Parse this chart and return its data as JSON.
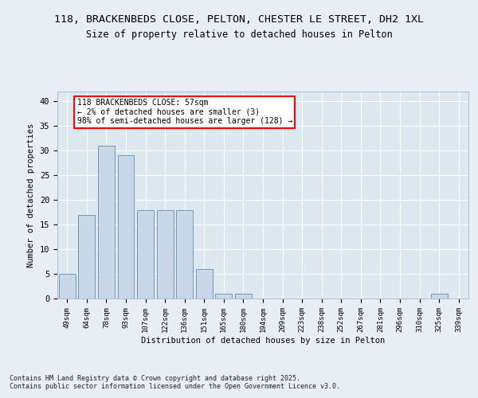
{
  "title_line1": "118, BRACKENBEDS CLOSE, PELTON, CHESTER LE STREET, DH2 1XL",
  "title_line2": "Size of property relative to detached houses in Pelton",
  "xlabel": "Distribution of detached houses by size in Pelton",
  "ylabel": "Number of detached properties",
  "categories": [
    "49sqm",
    "64sqm",
    "78sqm",
    "93sqm",
    "107sqm",
    "122sqm",
    "136sqm",
    "151sqm",
    "165sqm",
    "180sqm",
    "194sqm",
    "209sqm",
    "223sqm",
    "238sqm",
    "252sqm",
    "267sqm",
    "281sqm",
    "296sqm",
    "310sqm",
    "325sqm",
    "339sqm"
  ],
  "values": [
    5,
    17,
    31,
    29,
    18,
    18,
    18,
    6,
    1,
    1,
    0,
    0,
    0,
    0,
    0,
    0,
    0,
    0,
    0,
    1,
    0
  ],
  "bar_color": "#c8d8e8",
  "bar_edge_color": "#7098b8",
  "annotation_text": "118 BRACKENBEDS CLOSE: 57sqm\n← 2% of detached houses are smaller (3)\n98% of semi-detached houses are larger (128) →",
  "annotation_box_color": "white",
  "annotation_box_edge_color": "red",
  "ylim": [
    0,
    42
  ],
  "yticks": [
    0,
    5,
    10,
    15,
    20,
    25,
    30,
    35,
    40
  ],
  "background_color": "#dde8f0",
  "grid_color": "white",
  "fig_background": "#e8eef4",
  "footer_text": "Contains HM Land Registry data © Crown copyright and database right 2025.\nContains public sector information licensed under the Open Government Licence v3.0.",
  "fig_width": 6.0,
  "fig_height": 5.0
}
